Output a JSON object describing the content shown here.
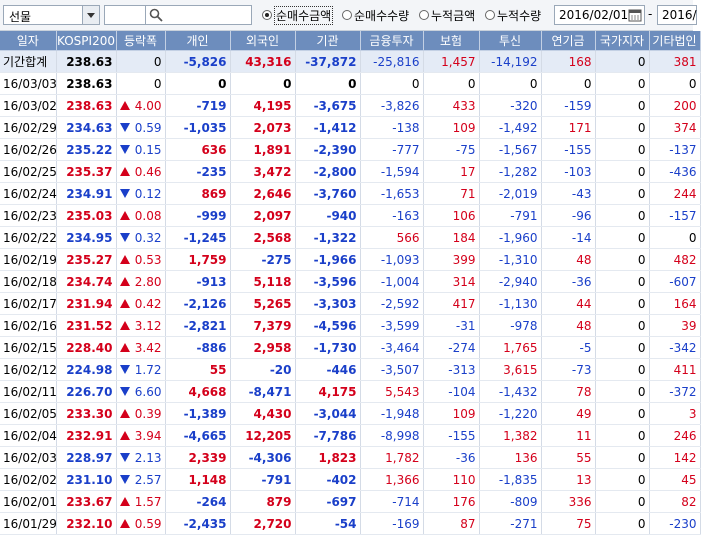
{
  "toolbar": {
    "market_select": "선물",
    "code_input": "",
    "search_input": "",
    "radios": [
      {
        "label": "순매수금액",
        "selected": true
      },
      {
        "label": "순매수수량",
        "selected": false
      },
      {
        "label": "누적금액",
        "selected": false
      },
      {
        "label": "누적수량",
        "selected": false
      }
    ],
    "start_date": "2016/02/01",
    "end_date": "2016/",
    "separator": "-"
  },
  "columns": [
    "일자",
    "KOSPI200",
    "등락폭",
    "개인",
    "외국인",
    "기관",
    "금융투자",
    "보험",
    "투신",
    "연기금",
    "국가지자",
    "기타법인"
  ],
  "summary": {
    "date": "기간합계",
    "kospi": "238.63",
    "dir": "",
    "change": "0",
    "individual": "-5,826",
    "foreign": "43,316",
    "institution": "-37,872",
    "finance": "-25,816",
    "insurance": "1,457",
    "trust": "-14,192",
    "pension": "168",
    "government": "0",
    "other": "381"
  },
  "rows": [
    {
      "date": "16/03/03",
      "kospi": "238.63",
      "dir": "",
      "change": "0",
      "individual": "0",
      "foreign": "0",
      "institution": "0",
      "finance": "0",
      "insurance": "0",
      "trust": "0",
      "pension": "0",
      "government": "0",
      "other": "0"
    },
    {
      "date": "16/03/02",
      "kospi": "238.63",
      "dir": "up",
      "change": "4.00",
      "individual": "-719",
      "foreign": "4,195",
      "institution": "-3,675",
      "finance": "-3,826",
      "insurance": "433",
      "trust": "-320",
      "pension": "-159",
      "government": "0",
      "other": "200"
    },
    {
      "date": "16/02/29",
      "kospi": "234.63",
      "dir": "down",
      "change": "0.59",
      "individual": "-1,035",
      "foreign": "2,073",
      "institution": "-1,412",
      "finance": "-138",
      "insurance": "109",
      "trust": "-1,492",
      "pension": "171",
      "government": "0",
      "other": "374"
    },
    {
      "date": "16/02/26",
      "kospi": "235.22",
      "dir": "down",
      "change": "0.15",
      "individual": "636",
      "foreign": "1,891",
      "institution": "-2,390",
      "finance": "-777",
      "insurance": "-75",
      "trust": "-1,567",
      "pension": "-155",
      "government": "0",
      "other": "-137"
    },
    {
      "date": "16/02/25",
      "kospi": "235.37",
      "dir": "up",
      "change": "0.46",
      "individual": "-235",
      "foreign": "3,472",
      "institution": "-2,800",
      "finance": "-1,594",
      "insurance": "17",
      "trust": "-1,282",
      "pension": "-103",
      "government": "0",
      "other": "-436"
    },
    {
      "date": "16/02/24",
      "kospi": "234.91",
      "dir": "down",
      "change": "0.12",
      "individual": "869",
      "foreign": "2,646",
      "institution": "-3,760",
      "finance": "-1,653",
      "insurance": "71",
      "trust": "-2,019",
      "pension": "-43",
      "government": "0",
      "other": "244"
    },
    {
      "date": "16/02/23",
      "kospi": "235.03",
      "dir": "up",
      "change": "0.08",
      "individual": "-999",
      "foreign": "2,097",
      "institution": "-940",
      "finance": "-163",
      "insurance": "106",
      "trust": "-791",
      "pension": "-96",
      "government": "0",
      "other": "-157"
    },
    {
      "date": "16/02/22",
      "kospi": "234.95",
      "dir": "down",
      "change": "0.32",
      "individual": "-1,245",
      "foreign": "2,568",
      "institution": "-1,322",
      "finance": "566",
      "insurance": "184",
      "trust": "-1,960",
      "pension": "-14",
      "government": "0",
      "other": "0"
    },
    {
      "date": "16/02/19",
      "kospi": "235.27",
      "dir": "up",
      "change": "0.53",
      "individual": "1,759",
      "foreign": "-275",
      "institution": "-1,966",
      "finance": "-1,093",
      "insurance": "399",
      "trust": "-1,310",
      "pension": "48",
      "government": "0",
      "other": "482"
    },
    {
      "date": "16/02/18",
      "kospi": "234.74",
      "dir": "up",
      "change": "2.80",
      "individual": "-913",
      "foreign": "5,118",
      "institution": "-3,596",
      "finance": "-1,004",
      "insurance": "314",
      "trust": "-2,940",
      "pension": "-36",
      "government": "0",
      "other": "-607"
    },
    {
      "date": "16/02/17",
      "kospi": "231.94",
      "dir": "up",
      "change": "0.42",
      "individual": "-2,126",
      "foreign": "5,265",
      "institution": "-3,303",
      "finance": "-2,592",
      "insurance": "417",
      "trust": "-1,130",
      "pension": "44",
      "government": "0",
      "other": "164"
    },
    {
      "date": "16/02/16",
      "kospi": "231.52",
      "dir": "up",
      "change": "3.12",
      "individual": "-2,821",
      "foreign": "7,379",
      "institution": "-4,596",
      "finance": "-3,599",
      "insurance": "-31",
      "trust": "-978",
      "pension": "48",
      "government": "0",
      "other": "39"
    },
    {
      "date": "16/02/15",
      "kospi": "228.40",
      "dir": "up",
      "change": "3.42",
      "individual": "-886",
      "foreign": "2,958",
      "institution": "-1,730",
      "finance": "-3,464",
      "insurance": "-274",
      "trust": "1,765",
      "pension": "-5",
      "government": "0",
      "other": "-342"
    },
    {
      "date": "16/02/12",
      "kospi": "224.98",
      "dir": "down",
      "change": "1.72",
      "individual": "55",
      "foreign": "-20",
      "institution": "-446",
      "finance": "-3,507",
      "insurance": "-313",
      "trust": "3,615",
      "pension": "-73",
      "government": "0",
      "other": "411"
    },
    {
      "date": "16/02/11",
      "kospi": "226.70",
      "dir": "down",
      "change": "6.60",
      "individual": "4,668",
      "foreign": "-8,471",
      "institution": "4,175",
      "finance": "5,543",
      "insurance": "-104",
      "trust": "-1,432",
      "pension": "78",
      "government": "0",
      "other": "-372"
    },
    {
      "date": "16/02/05",
      "kospi": "233.30",
      "dir": "up",
      "change": "0.39",
      "individual": "-1,389",
      "foreign": "4,430",
      "institution": "-3,044",
      "finance": "-1,948",
      "insurance": "109",
      "trust": "-1,220",
      "pension": "49",
      "government": "0",
      "other": "3"
    },
    {
      "date": "16/02/04",
      "kospi": "232.91",
      "dir": "up",
      "change": "3.94",
      "individual": "-4,665",
      "foreign": "12,205",
      "institution": "-7,786",
      "finance": "-8,998",
      "insurance": "-155",
      "trust": "1,382",
      "pension": "11",
      "government": "0",
      "other": "246"
    },
    {
      "date": "16/02/03",
      "kospi": "228.97",
      "dir": "down",
      "change": "2.13",
      "individual": "2,339",
      "foreign": "-4,306",
      "institution": "1,823",
      "finance": "1,782",
      "insurance": "-36",
      "trust": "136",
      "pension": "55",
      "government": "0",
      "other": "142"
    },
    {
      "date": "16/02/02",
      "kospi": "231.10",
      "dir": "down",
      "change": "2.57",
      "individual": "1,148",
      "foreign": "-791",
      "institution": "-402",
      "finance": "1,366",
      "insurance": "110",
      "trust": "-1,835",
      "pension": "13",
      "government": "0",
      "other": "45"
    },
    {
      "date": "16/02/01",
      "kospi": "233.67",
      "dir": "up",
      "change": "1.57",
      "individual": "-264",
      "foreign": "879",
      "institution": "-697",
      "finance": "-714",
      "insurance": "176",
      "trust": "-809",
      "pension": "336",
      "government": "0",
      "other": "82"
    },
    {
      "date": "16/01/29",
      "kospi": "232.10",
      "dir": "up",
      "change": "0.59",
      "individual": "-2,435",
      "foreign": "2,720",
      "institution": "-54",
      "finance": "-169",
      "insurance": "87",
      "trust": "-271",
      "pension": "75",
      "government": "0",
      "other": "-230"
    }
  ],
  "colors": {
    "header_bg": "#6d8dbd",
    "positive": "#d4001b",
    "negative": "#1a3fc9",
    "summary_bg": "#e4ebf6"
  },
  "icons": {
    "search": "magnifier-icon",
    "calendar": "calendar-icon",
    "dropdown": "chevron-down-icon"
  }
}
